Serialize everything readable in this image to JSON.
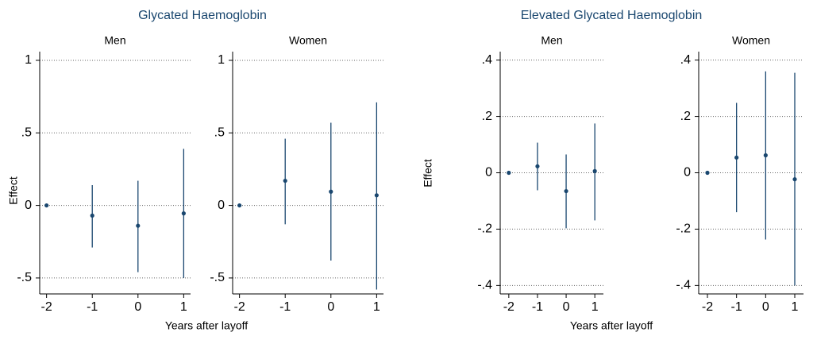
{
  "chart_data": [
    {
      "type": "errorbar",
      "title": "Glycated Haemoglobin",
      "ylabel": "Effect",
      "xlabel": "Years after layoff",
      "color": "#1a476f",
      "grid": true,
      "panels": [
        {
          "subtitle": "Men",
          "x": [
            -2,
            -1,
            0,
            1
          ],
          "values": [
            0,
            -0.07,
            -0.14,
            -0.055
          ],
          "lower": [
            0,
            -0.29,
            -0.46,
            -0.5
          ],
          "upper": [
            0,
            0.14,
            0.17,
            0.39
          ],
          "xlim": [
            -2.15,
            1.15
          ],
          "xticks": [
            -2,
            -1,
            0,
            1
          ],
          "ylim": [
            -0.61,
            1.06
          ],
          "yticks": [
            {
              "value": -0.5,
              "label": "-.5"
            },
            0,
            {
              "value": 0.5,
              "label": ".5"
            },
            1
          ]
        },
        {
          "subtitle": "Women",
          "x": [
            -2,
            -1,
            0,
            1
          ],
          "values": [
            0,
            0.17,
            0.095,
            0.07
          ],
          "lower": [
            0,
            -0.13,
            -0.38,
            -0.58
          ],
          "upper": [
            0,
            0.46,
            0.57,
            0.71
          ],
          "xlim": [
            -2.15,
            1.15
          ],
          "xticks": [
            -2,
            -1,
            0,
            1
          ],
          "ylim": [
            -0.61,
            1.06
          ],
          "yticks": [
            {
              "value": -0.5,
              "label": "-.5"
            },
            0,
            {
              "value": 0.5,
              "label": ".5"
            },
            1
          ]
        }
      ]
    },
    {
      "type": "errorbar",
      "title": "Elevated Glycated Haemoglobin",
      "ylabel": "Effect",
      "xlabel": "Years after layoff",
      "color": "#1a476f",
      "grid": true,
      "panels": [
        {
          "subtitle": "Men",
          "x": [
            -2,
            -1,
            0,
            1
          ],
          "values": [
            0,
            0.023,
            -0.065,
            0.006
          ],
          "lower": [
            0,
            -0.062,
            -0.197,
            -0.169
          ],
          "upper": [
            0,
            0.107,
            0.065,
            0.175
          ],
          "xlim": [
            -2.3,
            1.3
          ],
          "xticks": [
            -2,
            -1,
            0,
            1
          ],
          "ylim": [
            -0.43,
            0.43
          ],
          "yticks": [
            {
              "value": -0.4,
              "label": "-.4"
            },
            {
              "value": -0.2,
              "label": "-.2"
            },
            0,
            {
              "value": 0.2,
              "label": ".2"
            },
            {
              "value": 0.4,
              "label": ".4"
            }
          ]
        },
        {
          "subtitle": "Women",
          "x": [
            -2,
            -1,
            0,
            1
          ],
          "values": [
            0,
            0.054,
            0.062,
            -0.023
          ],
          "lower": [
            0,
            -0.14,
            -0.237,
            -0.4
          ],
          "upper": [
            0,
            0.248,
            0.36,
            0.355
          ],
          "xlim": [
            -2.3,
            1.3
          ],
          "xticks": [
            -2,
            -1,
            0,
            1
          ],
          "ylim": [
            -0.43,
            0.43
          ],
          "yticks": [
            {
              "value": -0.4,
              "label": "-.4"
            },
            {
              "value": -0.2,
              "label": "-.2"
            },
            0,
            {
              "value": 0.2,
              "label": ".2"
            },
            {
              "value": 0.4,
              "label": ".4"
            }
          ]
        }
      ]
    }
  ]
}
